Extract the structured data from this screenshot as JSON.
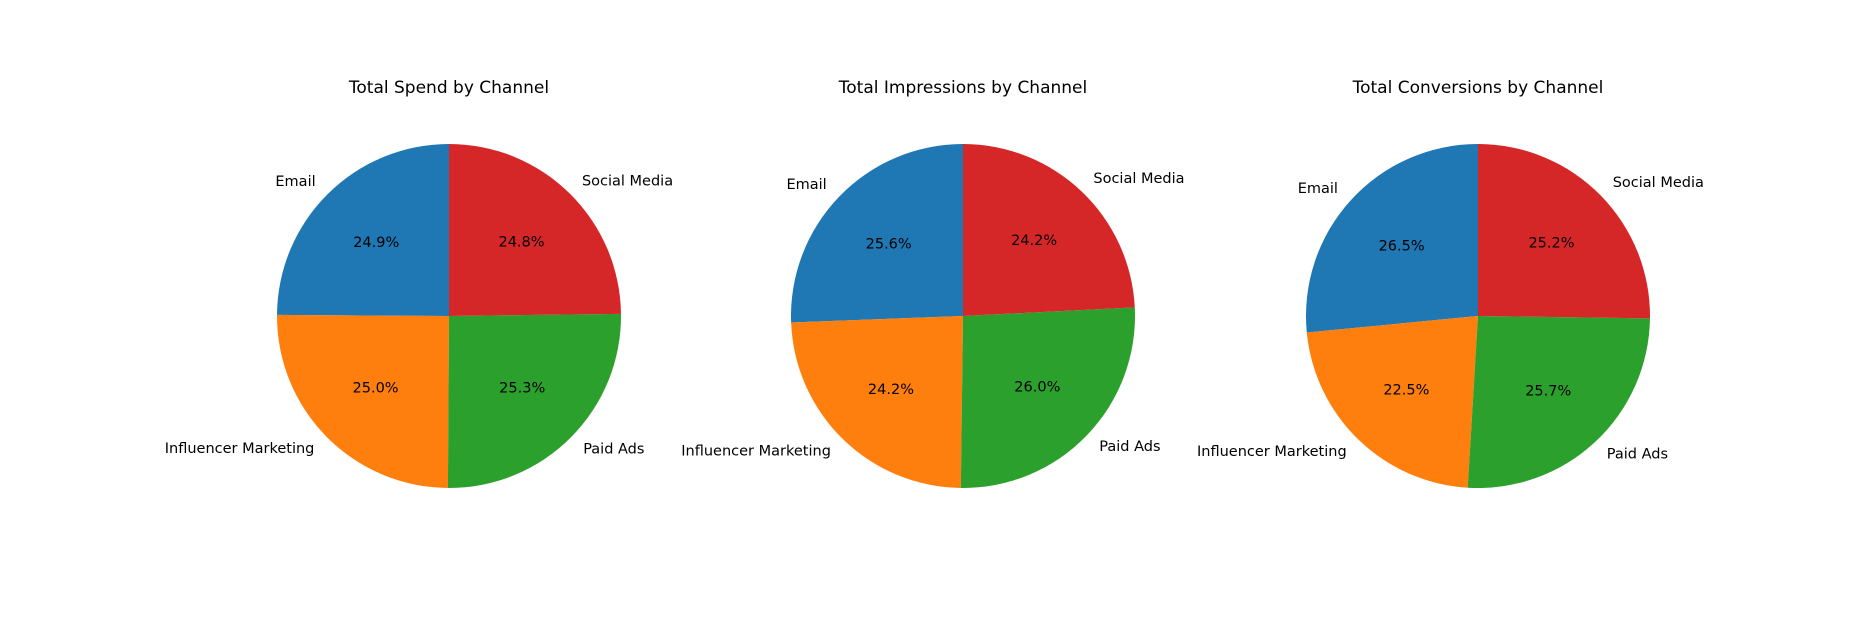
{
  "colors": {
    "Email": "#1f77b4",
    "Influencer Marketing": "#ff7f0e",
    "Paid Ads": "#2ca02c",
    "Social Media": "#d62728"
  },
  "chart_data": [
    {
      "type": "pie",
      "title": "Total Spend by Channel",
      "categories": [
        "Email",
        "Influencer Marketing",
        "Paid Ads",
        "Social Media"
      ],
      "values": [
        24.9,
        25.0,
        25.3,
        24.8
      ],
      "value_labels": [
        "24.9%",
        "25.0%",
        "25.3%",
        "24.8%"
      ],
      "start_angle_deg": 90,
      "direction": "counterclockwise"
    },
    {
      "type": "pie",
      "title": "Total Impressions by Channel",
      "categories": [
        "Email",
        "Influencer Marketing",
        "Paid Ads",
        "Social Media"
      ],
      "values": [
        25.6,
        24.2,
        26.0,
        24.2
      ],
      "value_labels": [
        "25.6%",
        "24.2%",
        "26.0%",
        "24.2%"
      ],
      "start_angle_deg": 90,
      "direction": "counterclockwise"
    },
    {
      "type": "pie",
      "title": "Total Conversions by Channel",
      "categories": [
        "Email",
        "Influencer Marketing",
        "Paid Ads",
        "Social Media"
      ],
      "values": [
        26.5,
        22.5,
        25.7,
        25.2
      ],
      "value_labels": [
        "26.5%",
        "22.5%",
        "25.7%",
        "25.2%"
      ],
      "start_angle_deg": 90,
      "direction": "counterclockwise"
    }
  ]
}
